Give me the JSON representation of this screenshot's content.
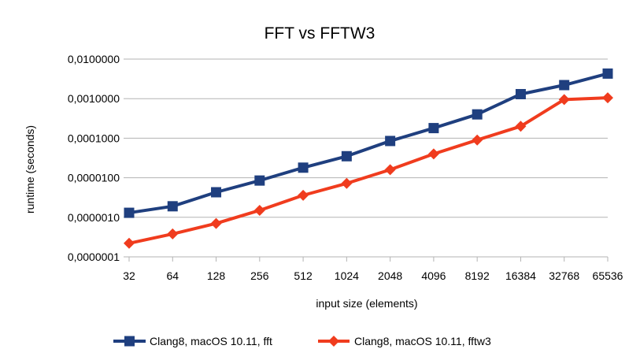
{
  "chart_data": {
    "type": "line",
    "title": "FFT vs FFTW3",
    "xlabel": "input size (elements)",
    "ylabel": "runtime (seconds)",
    "yscale": "log",
    "ylim": [
      1e-07,
      0.01
    ],
    "yticks": [
      {
        "value": 0.01,
        "label": "0,0100000"
      },
      {
        "value": 0.001,
        "label": "0,0010000"
      },
      {
        "value": 0.0001,
        "label": "0,0001000"
      },
      {
        "value": 1e-05,
        "label": "0,0000100"
      },
      {
        "value": 1e-06,
        "label": "0,0000010"
      },
      {
        "value": 1e-07,
        "label": "0,0000001"
      }
    ],
    "categories": [
      "32",
      "64",
      "128",
      "256",
      "512",
      "1024",
      "2048",
      "4096",
      "8192",
      "16384",
      "32768",
      "65536"
    ],
    "grid": true,
    "legend_position": "bottom",
    "series": [
      {
        "name": "Clang8, macOS 10.11, fft",
        "color": "#1f3f7f",
        "marker": "square",
        "values": [
          1.3e-06,
          1.9e-06,
          4.3e-06,
          8.5e-06,
          1.8e-05,
          3.5e-05,
          8.5e-05,
          0.00018,
          0.0004,
          0.0013,
          0.0022,
          0.0043
        ]
      },
      {
        "name": "Clang8, macOS 10.11, fftw3",
        "color": "#f03c1e",
        "marker": "diamond",
        "values": [
          2.2e-07,
          3.8e-07,
          7e-07,
          1.5e-06,
          3.6e-06,
          7.2e-06,
          1.6e-05,
          4e-05,
          9e-05,
          0.0002,
          0.00095,
          0.00105
        ]
      }
    ]
  }
}
